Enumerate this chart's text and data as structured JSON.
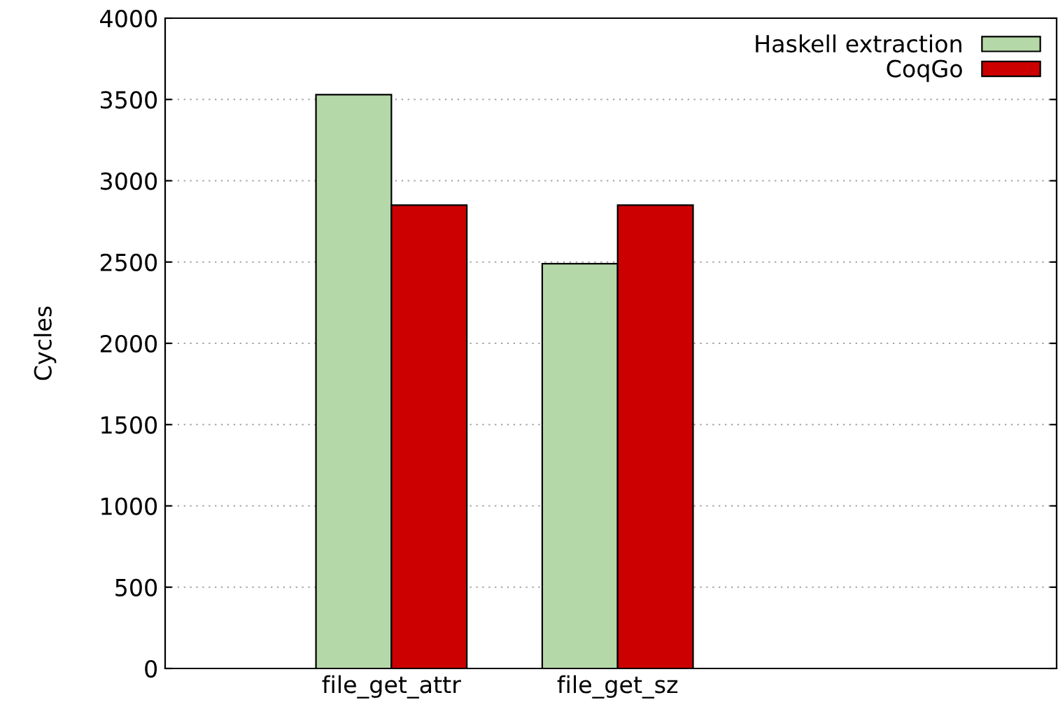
{
  "chart_data": {
    "type": "bar",
    "ylabel": "Cycles",
    "categories": [
      "file_get_attr",
      "file_get_sz"
    ],
    "series": [
      {
        "name": "Haskell extraction",
        "color": "#b5d8a8",
        "values": [
          3530,
          2490
        ]
      },
      {
        "name": "CoqGo",
        "color": "#cc0000",
        "values": [
          2850,
          2850
        ]
      }
    ],
    "ylim": [
      0,
      4000
    ],
    "yticks": [
      0,
      500,
      1000,
      1500,
      2000,
      2500,
      3000,
      3500,
      4000
    ],
    "grid": "y",
    "legend": "top right"
  }
}
